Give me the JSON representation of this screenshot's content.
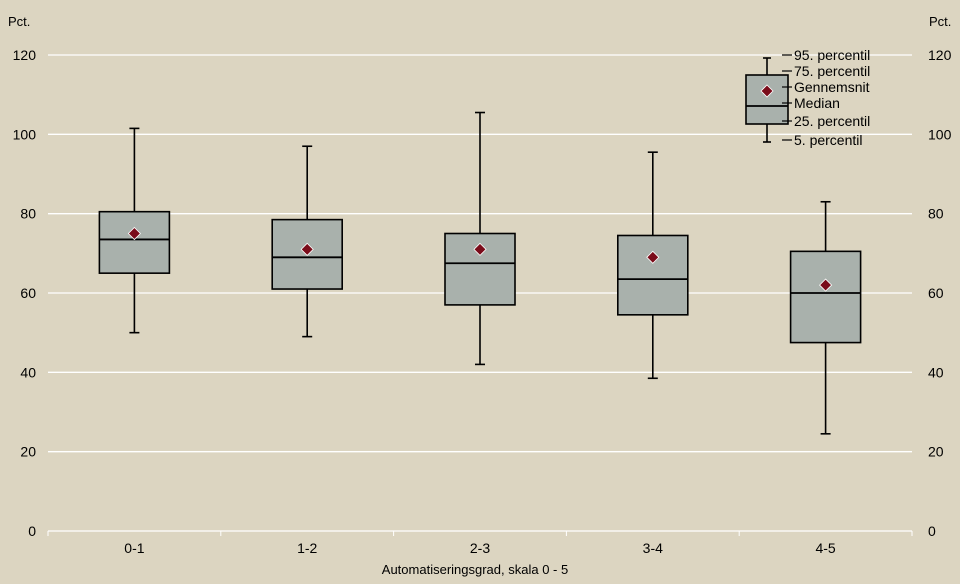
{
  "chart_data": {
    "type": "boxplot",
    "title": "",
    "xlabel": "Automatiseringsgrad, skala 0 - 5",
    "ylabel_left": "Pct.",
    "ylabel_right": "Pct.",
    "ylim": [
      0,
      120
    ],
    "yticks": [
      0,
      20,
      40,
      60,
      80,
      100,
      120
    ],
    "grid": true,
    "categories": [
      "0-1",
      "1-2",
      "2-3",
      "3-4",
      "4-5"
    ],
    "boxes": [
      {
        "category": "0-1",
        "p5": 50,
        "p25": 65,
        "median": 73.5,
        "mean": 75,
        "p75": 80.5,
        "p95": 101.5
      },
      {
        "category": "1-2",
        "p5": 49,
        "p25": 61,
        "median": 69,
        "mean": 71,
        "p75": 78.5,
        "p95": 97
      },
      {
        "category": "2-3",
        "p5": 42,
        "p25": 57,
        "median": 67.5,
        "mean": 71,
        "p75": 75,
        "p95": 105.5
      },
      {
        "category": "3-4",
        "p5": 38.5,
        "p25": 54.5,
        "median": 63.5,
        "mean": 69,
        "p75": 74.5,
        "p95": 95.5
      },
      {
        "category": "4-5",
        "p5": 24.5,
        "p25": 47.5,
        "median": 60,
        "mean": 62,
        "p75": 70.5,
        "p95": 83
      }
    ],
    "legend": {
      "position": "top-right",
      "items": [
        {
          "key": "p95",
          "label": "95. percentil"
        },
        {
          "key": "p75",
          "label": "75. percentil"
        },
        {
          "key": "mean",
          "label": "Gennemsnit"
        },
        {
          "key": "median",
          "label": "Median"
        },
        {
          "key": "p25",
          "label": "25. percentil"
        },
        {
          "key": "p5",
          "label": "5. percentil"
        }
      ]
    },
    "colors": {
      "background": "#dcd5c1",
      "grid": "#ffffff",
      "box_fill": "#a9b1ac",
      "box_stroke": "#000000",
      "mean_marker": "#7a0c1a"
    }
  }
}
